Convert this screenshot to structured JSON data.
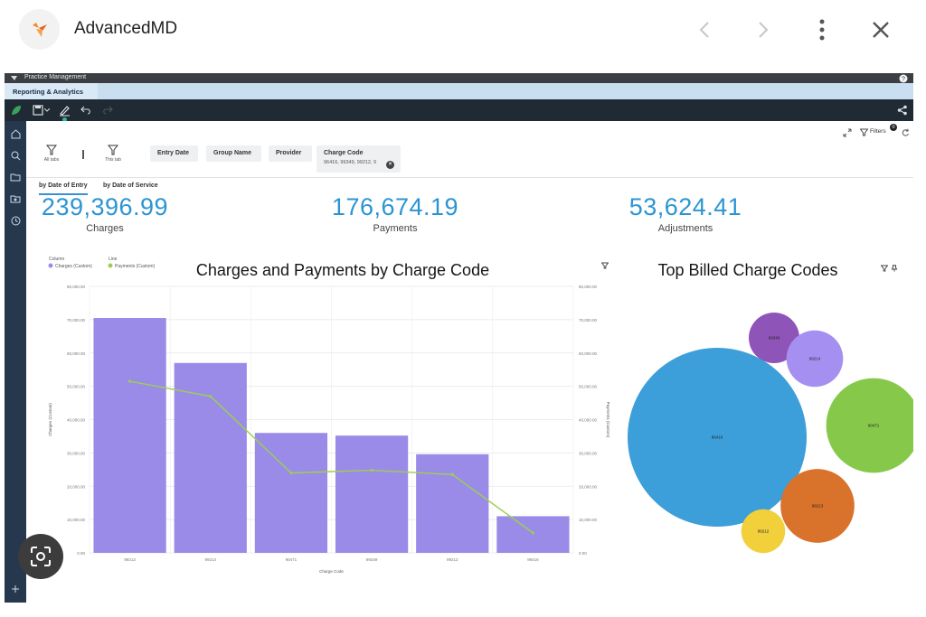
{
  "viewer": {
    "title": "AdvancedMD",
    "icons": [
      "advancedmd-logo-icon",
      "chevron-left-icon",
      "chevron-right-icon",
      "more-vertical-icon",
      "close-icon",
      "lens-icon"
    ]
  },
  "app": {
    "window_title": "Practice Management",
    "tab": "Reporting & Analytics",
    "colors": {
      "accent": "#2b95d3",
      "bar": "#9b8be8",
      "line": "#9ccf4f",
      "toolbar": "#1f2a35",
      "sidebar": "#25384d"
    }
  },
  "filters": {
    "label": "Filters",
    "count": "0",
    "tools": [
      "All tabs",
      "This tab"
    ],
    "chips": [
      {
        "label": "Entry Date"
      },
      {
        "label": "Group Name"
      },
      {
        "label": "Provider"
      },
      {
        "label": "Charge Code",
        "value": "96416, 99349, 99212, 9"
      }
    ]
  },
  "subtabs": [
    "by Date of Entry",
    "by Date of Service"
  ],
  "kpis": [
    {
      "value": "239,396.99",
      "label": "Charges"
    },
    {
      "value": "176,674.19",
      "label": "Payments"
    },
    {
      "value": "53,624.41",
      "label": "Adjustments"
    }
  ],
  "chart_data": [
    {
      "type": "bar",
      "title": "Charges and Payments by Charge Code",
      "xlabel": "Charge Code",
      "ylabel": "Charges (Custom)",
      "y2label": "Payments (Custom)",
      "legend": {
        "column_title": "Column",
        "column_item": "Charges (Custom)",
        "line_title": "Line",
        "line_item": "Payments (Custom)",
        "placement": "top-left"
      },
      "categories": [
        "99213",
        "99214",
        "90471",
        "99349",
        "99212",
        "96416"
      ],
      "ylim": [
        0,
        80000
      ],
      "y_ticks": [
        "0.00",
        "10,000.00",
        "20,000.00",
        "30,000.00",
        "40,000.00",
        "50,000.00",
        "60,000.00",
        "70,000.00",
        "80,000.00"
      ],
      "y2lim": [
        0,
        80000
      ],
      "y2_ticks": [
        "0.00",
        "10,000.00",
        "20,000.00",
        "30,000.00",
        "40,000.00",
        "50,000.00",
        "60,000.00",
        "70,000.00",
        "80,000.00"
      ],
      "series": [
        {
          "name": "Charges (Custom)",
          "kind": "bar",
          "values": [
            70500,
            57000,
            36000,
            35200,
            29600,
            11000
          ]
        },
        {
          "name": "Payments (Custom)",
          "kind": "line",
          "axis": "right",
          "values": [
            51500,
            47000,
            24000,
            24800,
            23500,
            6000
          ]
        }
      ]
    },
    {
      "type": "bubble",
      "title": "Top Billed Charge Codes",
      "items": [
        {
          "label": "96416",
          "value": 100,
          "color": "#3d9fd9"
        },
        {
          "label": "99349",
          "value": 8,
          "color": "#8e54b8"
        },
        {
          "label": "99214",
          "value": 10,
          "color": "#a58ff0"
        },
        {
          "label": "90471",
          "value": 28,
          "color": "#86c84a"
        },
        {
          "label": "99213",
          "value": 17,
          "color": "#d9722a"
        },
        {
          "label": "99212",
          "value": 6,
          "color": "#f1d03b"
        }
      ]
    }
  ]
}
